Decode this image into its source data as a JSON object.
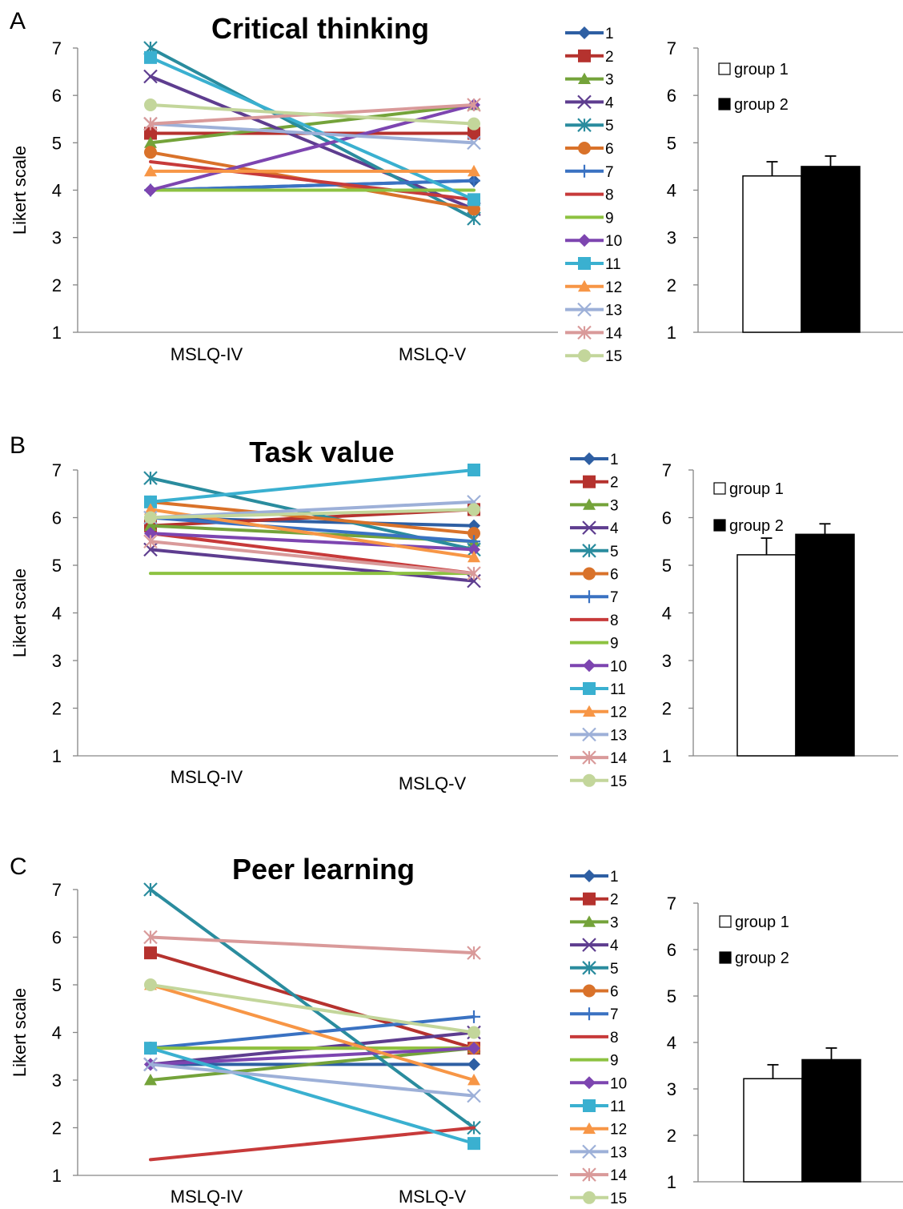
{
  "panels": [
    {
      "label": "A",
      "chart_data": [
        {
          "type": "line",
          "title": "Critical thinking",
          "xlabel": "",
          "ylabel": "Likert scale",
          "categories": [
            "MSLQ-IV",
            "MSLQ-V"
          ],
          "ylim": [
            1,
            7
          ],
          "yticks": [
            1,
            2,
            3,
            4,
            5,
            6,
            7
          ],
          "series": [
            {
              "name": "1",
              "values": [
                4.0,
                4.2
              ]
            },
            {
              "name": "2",
              "values": [
                5.2,
                5.2
              ]
            },
            {
              "name": "3",
              "values": [
                5.0,
                5.8
              ]
            },
            {
              "name": "4",
              "values": [
                6.4,
                3.6
              ]
            },
            {
              "name": "5",
              "values": [
                7.0,
                3.4
              ]
            },
            {
              "name": "6",
              "values": [
                4.8,
                3.6
              ]
            },
            {
              "name": "7",
              "values": [
                4.0,
                4.2
              ]
            },
            {
              "name": "8",
              "values": [
                4.6,
                3.8
              ]
            },
            {
              "name": "9",
              "values": [
                4.0,
                4.0
              ]
            },
            {
              "name": "10",
              "values": [
                4.0,
                5.8
              ]
            },
            {
              "name": "11",
              "values": [
                6.8,
                3.8
              ]
            },
            {
              "name": "12",
              "values": [
                4.4,
                4.4
              ]
            },
            {
              "name": "13",
              "values": [
                5.4,
                5.0
              ]
            },
            {
              "name": "14",
              "values": [
                5.4,
                5.8
              ]
            },
            {
              "name": "15",
              "values": [
                5.8,
                5.4
              ]
            }
          ]
        },
        {
          "type": "bar",
          "ylim": [
            1,
            7
          ],
          "yticks": [
            1,
            2,
            3,
            4,
            5,
            6,
            7
          ],
          "series": [
            {
              "name": "group 1",
              "values": [
                4.3
              ],
              "error": [
                0.3
              ]
            },
            {
              "name": "group 2",
              "values": [
                4.5
              ],
              "error": [
                0.22
              ]
            }
          ]
        }
      ]
    },
    {
      "label": "B",
      "chart_data": [
        {
          "type": "line",
          "title": "Task value",
          "xlabel": "",
          "ylabel": "Likert scale",
          "categories": [
            "MSLQ-IV",
            "MSLQ-V"
          ],
          "ylim": [
            1,
            7
          ],
          "yticks": [
            1,
            2,
            3,
            4,
            5,
            6,
            7
          ],
          "series": [
            {
              "name": "1",
              "values": [
                6.0,
                5.83
              ]
            },
            {
              "name": "2",
              "values": [
                5.83,
                6.17
              ]
            },
            {
              "name": "3",
              "values": [
                5.83,
                5.5
              ]
            },
            {
              "name": "4",
              "values": [
                5.33,
                4.67
              ]
            },
            {
              "name": "5",
              "values": [
                6.83,
                5.33
              ]
            },
            {
              "name": "6",
              "values": [
                6.33,
                5.67
              ]
            },
            {
              "name": "7",
              "values": [
                6.0,
                5.5
              ]
            },
            {
              "name": "8",
              "values": [
                5.67,
                4.83
              ]
            },
            {
              "name": "9",
              "values": [
                4.83,
                4.83
              ]
            },
            {
              "name": "10",
              "values": [
                5.67,
                5.33
              ]
            },
            {
              "name": "11",
              "values": [
                6.33,
                7.0
              ]
            },
            {
              "name": "12",
              "values": [
                6.17,
                5.17
              ]
            },
            {
              "name": "13",
              "values": [
                6.0,
                6.33
              ]
            },
            {
              "name": "14",
              "values": [
                5.5,
                4.83
              ]
            },
            {
              "name": "15",
              "values": [
                6.0,
                6.17
              ]
            }
          ]
        },
        {
          "type": "bar",
          "ylim": [
            1,
            7
          ],
          "yticks": [
            1,
            2,
            3,
            4,
            5,
            6,
            7
          ],
          "series": [
            {
              "name": "group 1",
              "values": [
                5.22
              ],
              "error": [
                0.35
              ]
            },
            {
              "name": "group 2",
              "values": [
                5.65
              ],
              "error": [
                0.22
              ]
            }
          ]
        }
      ]
    },
    {
      "label": "C",
      "chart_data": [
        {
          "type": "line",
          "title": "Peer learning",
          "xlabel": "",
          "ylabel": "Likert scale",
          "categories": [
            "MSLQ-IV",
            "MSLQ-V"
          ],
          "ylim": [
            1,
            7
          ],
          "yticks": [
            1,
            2,
            3,
            4,
            5,
            6,
            7
          ],
          "series": [
            {
              "name": "1",
              "values": [
                3.33,
                3.33
              ]
            },
            {
              "name": "2",
              "values": [
                5.67,
                3.67
              ]
            },
            {
              "name": "3",
              "values": [
                3.0,
                3.67
              ]
            },
            {
              "name": "4",
              "values": [
                3.33,
                4.0
              ]
            },
            {
              "name": "5",
              "values": [
                7.0,
                2.0
              ]
            },
            {
              "name": "6",
              "values": [
                3.67,
                3.67
              ]
            },
            {
              "name": "7",
              "values": [
                3.67,
                4.33
              ]
            },
            {
              "name": "8",
              "values": [
                1.33,
                2.0
              ]
            },
            {
              "name": "9",
              "values": [
                3.67,
                3.67
              ]
            },
            {
              "name": "10",
              "values": [
                3.33,
                3.67
              ]
            },
            {
              "name": "11",
              "values": [
                3.67,
                1.67
              ]
            },
            {
              "name": "12",
              "values": [
                5.0,
                3.0
              ]
            },
            {
              "name": "13",
              "values": [
                3.33,
                2.67
              ]
            },
            {
              "name": "14",
              "values": [
                6.0,
                5.67
              ]
            },
            {
              "name": "15",
              "values": [
                5.0,
                4.0
              ]
            }
          ]
        },
        {
          "type": "bar",
          "ylim": [
            1,
            7
          ],
          "yticks": [
            1,
            2,
            3,
            4,
            5,
            6,
            7
          ],
          "series": [
            {
              "name": "group 1",
              "values": [
                3.22
              ],
              "error": [
                0.3
              ]
            },
            {
              "name": "group 2",
              "values": [
                3.63
              ],
              "error": [
                0.25
              ]
            }
          ]
        }
      ]
    }
  ],
  "series_style": [
    {
      "color": "#2E5FA3",
      "marker": "diamond"
    },
    {
      "color": "#B5322E",
      "marker": "square"
    },
    {
      "color": "#74A33A",
      "marker": "triangle"
    },
    {
      "color": "#5E3D8F",
      "marker": "x"
    },
    {
      "color": "#2A8C9E",
      "marker": "star"
    },
    {
      "color": "#D9722A",
      "marker": "circle"
    },
    {
      "color": "#3A72C2",
      "marker": "plus"
    },
    {
      "color": "#C73A3A",
      "marker": "none"
    },
    {
      "color": "#8DC241",
      "marker": "none"
    },
    {
      "color": "#7D45B0",
      "marker": "diamond"
    },
    {
      "color": "#3AB0D0",
      "marker": "square"
    },
    {
      "color": "#F79646",
      "marker": "triangle"
    },
    {
      "color": "#9DB0D8",
      "marker": "x"
    },
    {
      "color": "#D99A9A",
      "marker": "star"
    },
    {
      "color": "#C3D69B",
      "marker": "circle"
    }
  ],
  "bar_colors": {
    "group 1": "#ffffff",
    "group 2": "#000000"
  }
}
